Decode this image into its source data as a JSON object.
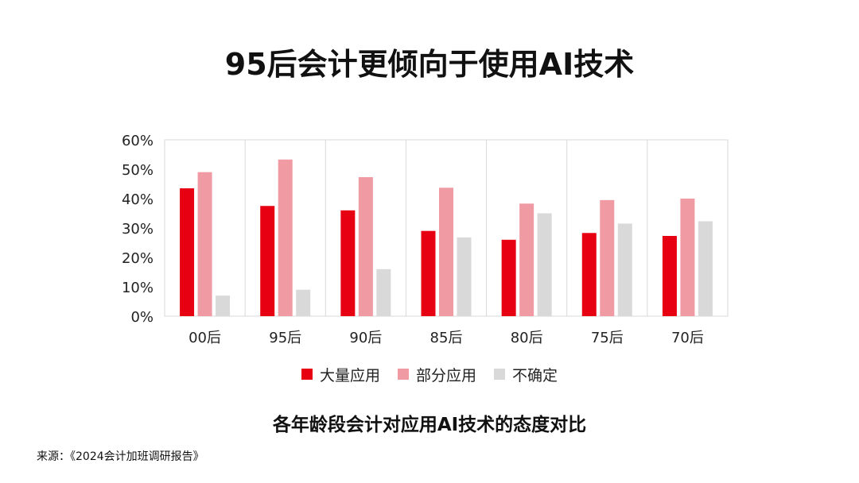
{
  "title": "95后会计更倾向于使用AI技术",
  "caption": "各年龄段会计对应用AI技术的态度对比",
  "source": "来源：《2024会计加班调研报告》",
  "chart_data": {
    "type": "bar",
    "categories": [
      "00后",
      "95后",
      "90后",
      "85后",
      "80后",
      "75后",
      "70后"
    ],
    "series": [
      {
        "name": "大量应用",
        "color": "#e60012",
        "values": [
          43.5,
          37.5,
          36,
          29,
          26,
          28.3,
          27.3
        ]
      },
      {
        "name": "部分应用",
        "color": "#f09aa3",
        "values": [
          49,
          53.3,
          47.3,
          43.7,
          38.3,
          39.5,
          40
        ]
      },
      {
        "name": "不确定",
        "color": "#d9d9d9",
        "values": [
          7,
          9,
          16,
          26.8,
          35,
          31.5,
          32.3
        ]
      }
    ],
    "y_ticks": [
      "0%",
      "10%",
      "20%",
      "30%",
      "40%",
      "50%",
      "60%"
    ],
    "ylim": [
      0,
      60
    ],
    "legend_position": "bottom",
    "grid": "vertical category separators"
  }
}
